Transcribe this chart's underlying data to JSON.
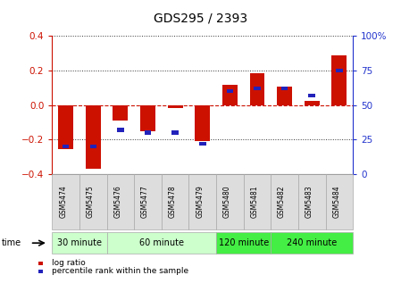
{
  "title": "GDS295 / 2393",
  "samples": [
    "GSM5474",
    "GSM5475",
    "GSM5476",
    "GSM5477",
    "GSM5478",
    "GSM5479",
    "GSM5480",
    "GSM5481",
    "GSM5482",
    "GSM5483",
    "GSM5484"
  ],
  "log_ratio": [
    -0.255,
    -0.37,
    -0.09,
    -0.15,
    -0.02,
    -0.21,
    0.115,
    0.185,
    0.105,
    0.025,
    0.29
  ],
  "percentile": [
    20,
    20,
    32,
    30,
    30,
    22,
    60,
    62,
    62,
    57,
    75
  ],
  "group_spans": [
    {
      "start": 0,
      "end": 1,
      "label": "30 minute",
      "color": "#ccffcc"
    },
    {
      "start": 2,
      "end": 5,
      "label": "60 minute",
      "color": "#ccffcc"
    },
    {
      "start": 6,
      "end": 7,
      "label": "120 minute",
      "color": "#44ee44"
    },
    {
      "start": 8,
      "end": 10,
      "label": "240 minute",
      "color": "#44ee44"
    }
  ],
  "bar_width": 0.55,
  "log_ratio_color": "#cc1100",
  "percentile_color": "#2222bb",
  "ylim": [
    -0.4,
    0.4
  ],
  "y2lim": [
    0,
    100
  ],
  "y_ticks": [
    -0.4,
    -0.2,
    0.0,
    0.2,
    0.4
  ],
  "y2_ticks": [
    0,
    25,
    50,
    75,
    100
  ],
  "zero_line_color": "#cc1100",
  "bg_color": "#ffffff",
  "left_tick_color": "#cc1100",
  "right_tick_color": "#2233cc",
  "time_label": "time",
  "legend_log_ratio": "log ratio",
  "legend_percentile": "percentile rank within the sample",
  "label_bg_color": "#dddddd",
  "label_edge_color": "#aaaaaa"
}
